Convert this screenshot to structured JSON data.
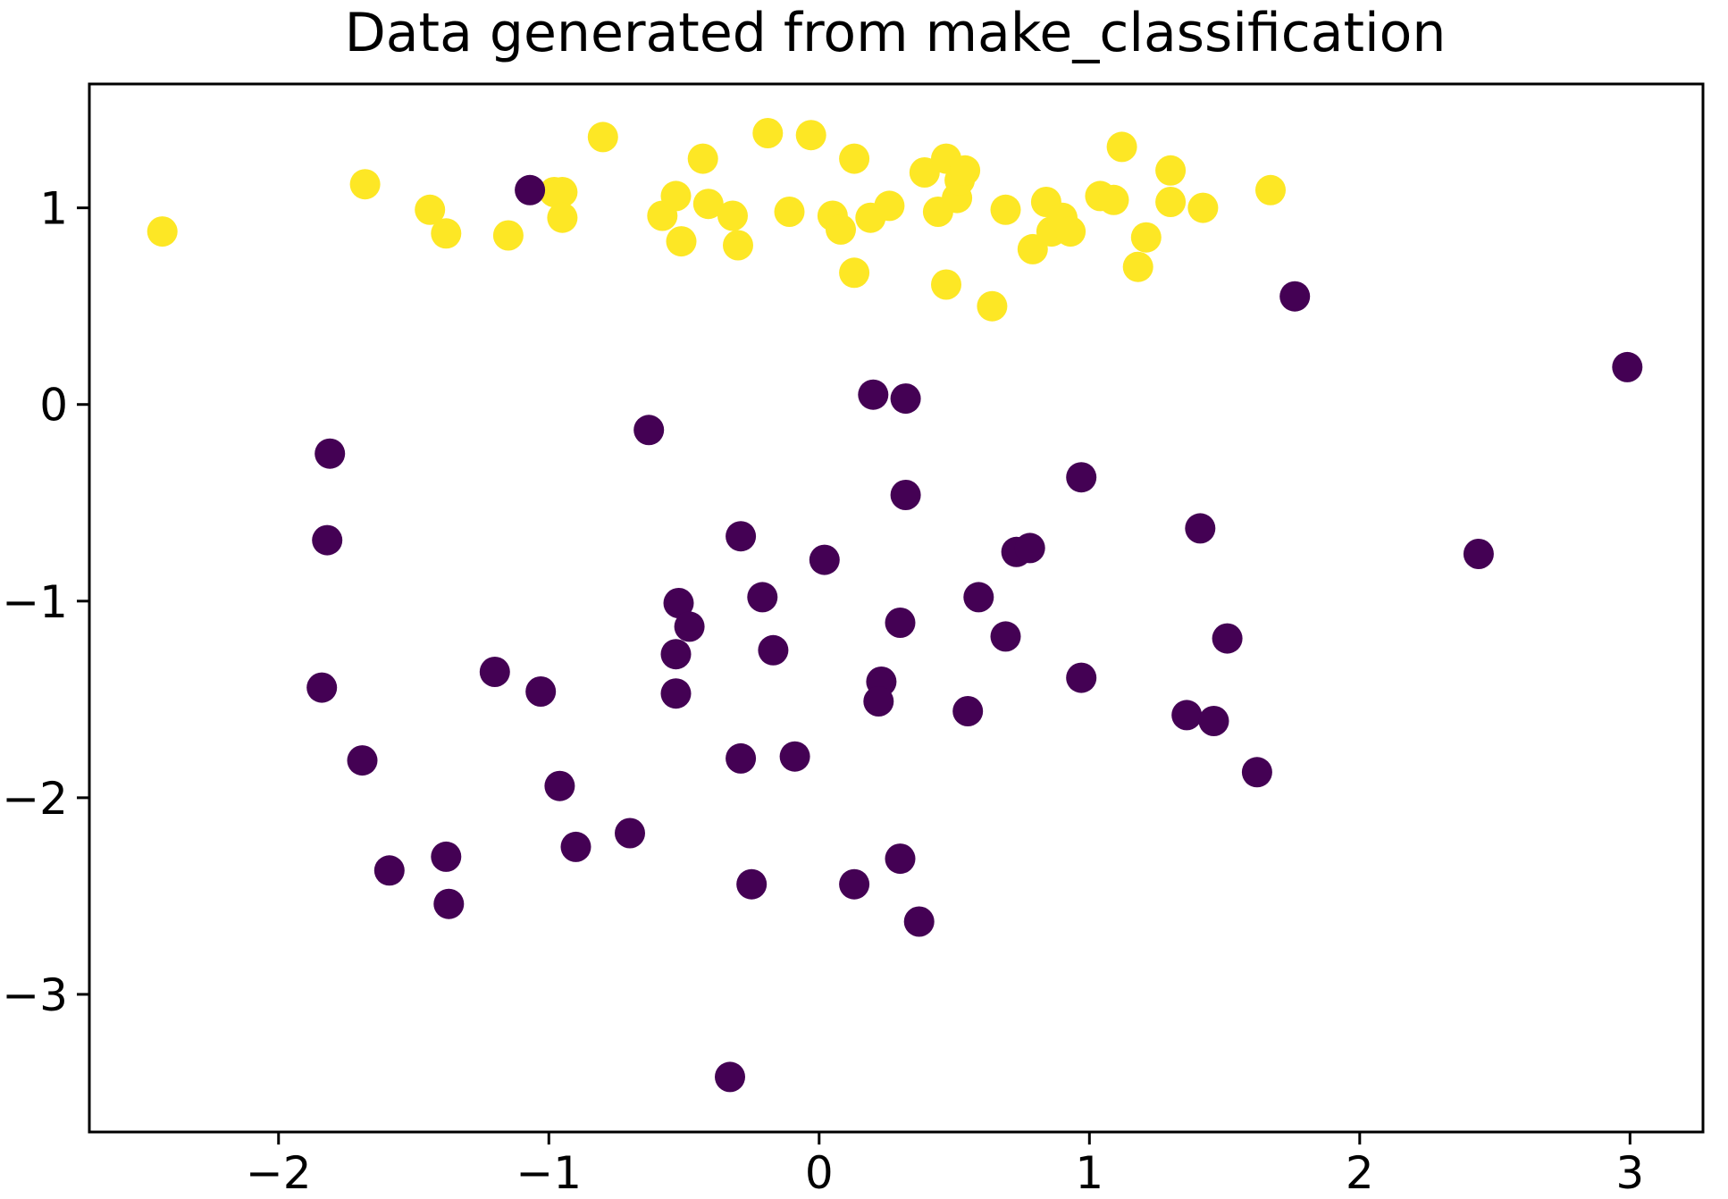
{
  "chart_data": {
    "type": "scatter",
    "title": "Data generated from make_classification",
    "xlabel": "",
    "ylabel": "",
    "xlim": [
      -2.7,
      3.27
    ],
    "ylim": [
      -3.7,
      1.63
    ],
    "xticks": [
      -2,
      -1,
      0,
      1,
      2,
      3
    ],
    "yticks": [
      -3,
      -2,
      -1,
      0,
      1
    ],
    "xtick_labels": [
      "−2",
      "−1",
      "0",
      "1",
      "2",
      "3"
    ],
    "ytick_labels": [
      "−3",
      "−2",
      "−1",
      "0",
      "1"
    ],
    "grid": false,
    "legend": "none",
    "colors": {
      "class_0": "#440154",
      "class_1": "#fde725"
    },
    "series": [
      {
        "class": 1,
        "points": [
          [
            -2.43,
            0.88
          ],
          [
            -1.68,
            1.12
          ],
          [
            -1.44,
            0.99
          ],
          [
            -1.38,
            0.87
          ],
          [
            -1.15,
            0.86
          ],
          [
            -0.98,
            1.08
          ],
          [
            -0.95,
            1.08
          ],
          [
            -0.95,
            0.95
          ],
          [
            -0.8,
            1.36
          ],
          [
            -0.58,
            0.96
          ],
          [
            -0.53,
            1.06
          ],
          [
            -0.51,
            0.83
          ],
          [
            -0.43,
            1.25
          ],
          [
            -0.41,
            1.02
          ],
          [
            -0.32,
            0.96
          ],
          [
            -0.3,
            0.81
          ],
          [
            -0.19,
            1.38
          ],
          [
            -0.11,
            0.98
          ],
          [
            -0.03,
            1.37
          ],
          [
            0.05,
            0.96
          ],
          [
            0.08,
            0.89
          ],
          [
            0.13,
            1.25
          ],
          [
            0.13,
            0.67
          ],
          [
            0.19,
            0.95
          ],
          [
            0.26,
            1.01
          ],
          [
            0.39,
            1.18
          ],
          [
            0.44,
            0.98
          ],
          [
            0.47,
            1.25
          ],
          [
            0.47,
            0.61
          ],
          [
            0.51,
            1.05
          ],
          [
            0.52,
            1.14
          ],
          [
            0.54,
            1.19
          ],
          [
            0.64,
            0.5
          ],
          [
            0.69,
            0.99
          ],
          [
            0.79,
            0.79
          ],
          [
            0.84,
            1.03
          ],
          [
            0.86,
            0.88
          ],
          [
            0.9,
            0.95
          ],
          [
            0.93,
            0.88
          ],
          [
            1.04,
            1.06
          ],
          [
            1.09,
            1.04
          ],
          [
            1.12,
            1.31
          ],
          [
            1.18,
            0.7
          ],
          [
            1.21,
            0.85
          ],
          [
            1.3,
            1.19
          ],
          [
            1.3,
            1.03
          ],
          [
            1.42,
            1.0
          ],
          [
            1.67,
            1.09
          ]
        ]
      },
      {
        "class": 0,
        "points": [
          [
            -1.07,
            1.09
          ],
          [
            1.76,
            0.55
          ],
          [
            2.99,
            0.19
          ],
          [
            0.2,
            0.05
          ],
          [
            0.32,
            0.03
          ],
          [
            -0.63,
            -0.13
          ],
          [
            -1.81,
            -0.25
          ],
          [
            0.32,
            -0.46
          ],
          [
            0.97,
            -0.37
          ],
          [
            -1.82,
            -0.69
          ],
          [
            -0.29,
            -0.67
          ],
          [
            0.02,
            -0.79
          ],
          [
            0.73,
            -0.75
          ],
          [
            0.78,
            -0.73
          ],
          [
            1.41,
            -0.63
          ],
          [
            2.44,
            -0.76
          ],
          [
            -0.52,
            -1.01
          ],
          [
            -0.48,
            -1.13
          ],
          [
            -0.21,
            -0.98
          ],
          [
            0.3,
            -1.11
          ],
          [
            0.59,
            -0.98
          ],
          [
            0.69,
            -1.18
          ],
          [
            1.51,
            -1.19
          ],
          [
            -0.53,
            -1.27
          ],
          [
            -0.17,
            -1.25
          ],
          [
            0.23,
            -1.41
          ],
          [
            0.22,
            -1.51
          ],
          [
            0.55,
            -1.56
          ],
          [
            0.97,
            -1.39
          ],
          [
            1.36,
            -1.58
          ],
          [
            1.46,
            -1.61
          ],
          [
            -1.84,
            -1.44
          ],
          [
            -1.2,
            -1.36
          ],
          [
            -1.03,
            -1.46
          ],
          [
            -0.53,
            -1.47
          ],
          [
            -1.69,
            -1.81
          ],
          [
            -0.96,
            -1.94
          ],
          [
            -0.29,
            -1.8
          ],
          [
            -0.09,
            -1.79
          ],
          [
            1.62,
            -1.87
          ],
          [
            -0.7,
            -2.18
          ],
          [
            -0.9,
            -2.25
          ],
          [
            -1.59,
            -2.37
          ],
          [
            -1.38,
            -2.3
          ],
          [
            -1.37,
            -2.54
          ],
          [
            -0.25,
            -2.44
          ],
          [
            0.13,
            -2.44
          ],
          [
            0.3,
            -2.31
          ],
          [
            0.37,
            -2.63
          ],
          [
            -0.33,
            -3.42
          ]
        ]
      }
    ]
  }
}
